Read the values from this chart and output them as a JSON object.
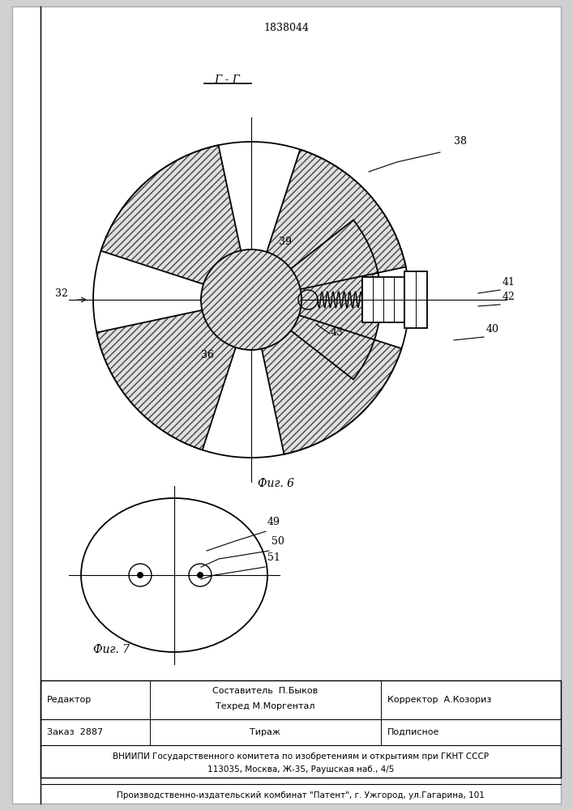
{
  "title": "1838044",
  "fig6_label": "Фиг. 6",
  "fig7_label": "Фиг. 7",
  "section_label": "Г - Г",
  "footer": {
    "line1_left": "Редактор",
    "line1_center": "Составитель  П.Быков\nТехред М.Моргентал",
    "line1_right": "Корректор  А.Козориз",
    "line2_col1": "Заказ  2887",
    "line2_col2": "Тираж",
    "line2_col3": "Подписное",
    "line3": "ВНИИПИ Государственного комитета по изобретениям и открытиям при ГКНТ СССР",
    "line4": "113035, Москва, Ж-35, Раушская наб., 4/5",
    "line5": "Производственно-издательский комбинат \"Патент\", г. Ужгород, ул.Гагарина, 101"
  }
}
